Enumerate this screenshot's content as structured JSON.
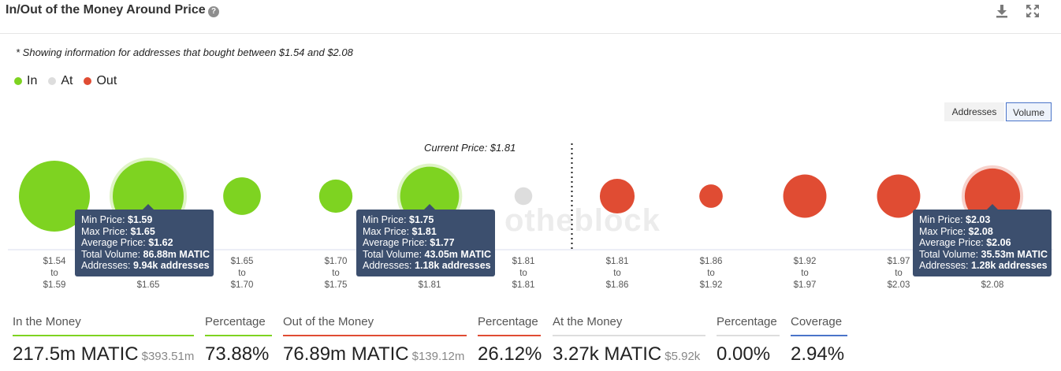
{
  "header": {
    "title": "In/Out of the Money Around Price",
    "help_icon": "question-circle-icon",
    "download_icon": "download-icon",
    "expand_icon": "expand-icon"
  },
  "note": "* Showing information for addresses that bought between $1.54 and $2.08",
  "legend": [
    {
      "label": "In",
      "color": "#7ed321"
    },
    {
      "label": "At",
      "color": "#dddddd"
    },
    {
      "label": "Out",
      "color": "#e04c33"
    }
  ],
  "toggles": {
    "addresses": "Addresses",
    "volume": "Volume",
    "active": "volume"
  },
  "current_price_label": "Current Price: $1.81",
  "watermark": "intotheblock",
  "chart_data": {
    "type": "bubble",
    "title": "In/Out of the Money Around Price",
    "legend_position": "top-left",
    "current_price": 1.81,
    "categories": [
      {
        "from": "$1.54",
        "to": "$1.59",
        "status": "in",
        "relative_size": 1.0
      },
      {
        "from": "$1.59",
        "to": "$1.65",
        "status": "in",
        "relative_size": 1.0,
        "highlighted": true
      },
      {
        "from": "$1.65",
        "to": "$1.70",
        "status": "in",
        "relative_size": 0.53
      },
      {
        "from": "$1.70",
        "to": "$1.75",
        "status": "in",
        "relative_size": 0.47
      },
      {
        "from": "$1.75",
        "to": "$1.81",
        "status": "in",
        "relative_size": 0.83,
        "highlighted": true
      },
      {
        "from": "$1.81",
        "to": "$1.81",
        "status": "at",
        "relative_size": 0.25
      },
      {
        "from": "$1.81",
        "to": "$1.86",
        "status": "out",
        "relative_size": 0.49
      },
      {
        "from": "$1.86",
        "to": "$1.92",
        "status": "out",
        "relative_size": 0.33
      },
      {
        "from": "$1.92",
        "to": "$1.97",
        "status": "out",
        "relative_size": 0.61
      },
      {
        "from": "$1.97",
        "to": "$2.03",
        "status": "out",
        "relative_size": 0.61
      },
      {
        "from": "$2.03",
        "to": "$2.08",
        "status": "out",
        "relative_size": 0.78,
        "highlighted": true
      }
    ],
    "tooltips": [
      {
        "category_index": 1,
        "lines": [
          [
            "Min Price:",
            "$1.59"
          ],
          [
            "Max Price:",
            "$1.65"
          ],
          [
            "Average Price:",
            "$1.62"
          ],
          [
            "Total Volume:",
            "86.88m MATIC"
          ],
          [
            "Addresses:",
            "9.94k addresses"
          ]
        ]
      },
      {
        "category_index": 4,
        "lines": [
          [
            "Min Price:",
            "$1.75"
          ],
          [
            "Max Price:",
            "$1.81"
          ],
          [
            "Average Price:",
            "$1.77"
          ],
          [
            "Total Volume:",
            "43.05m MATIC"
          ],
          [
            "Addresses:",
            "1.18k addresses"
          ]
        ]
      },
      {
        "category_index": 10,
        "lines": [
          [
            "Min Price:",
            "$2.03"
          ],
          [
            "Max Price:",
            "$2.08"
          ],
          [
            "Average Price:",
            "$2.06"
          ],
          [
            "Total Volume:",
            "35.53m MATIC"
          ],
          [
            "Addresses:",
            "1.28k addresses"
          ]
        ]
      }
    ]
  },
  "stats": [
    {
      "label": "In the Money",
      "value": "217.5m MATIC",
      "sub": "$393.51m",
      "color": "#7ed321"
    },
    {
      "label": "Percentage",
      "value": "73.88%",
      "sub": "",
      "color": "#7ed321"
    },
    {
      "label": "Out of the Money",
      "value": "76.89m MATIC",
      "sub": "$139.12m",
      "color": "#e04c33"
    },
    {
      "label": "Percentage",
      "value": "26.12%",
      "sub": "",
      "color": "#e04c33"
    },
    {
      "label": "At the Money",
      "value": "3.27k MATIC",
      "sub": "$5.92k",
      "color": "#dddddd"
    },
    {
      "label": "Percentage",
      "value": "0.00%",
      "sub": "",
      "color": "#dddddd"
    },
    {
      "label": "Coverage",
      "value": "2.94%",
      "sub": "",
      "color": "#4a74c9"
    }
  ]
}
